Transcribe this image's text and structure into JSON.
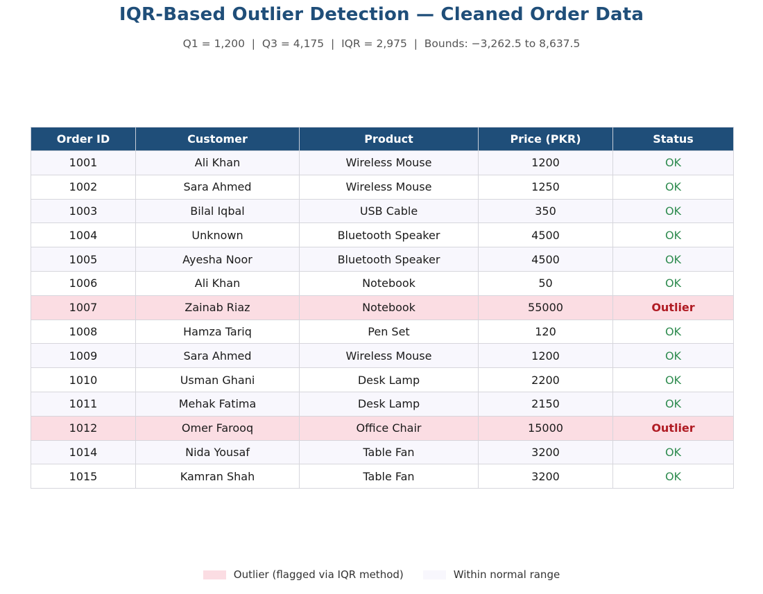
{
  "chart_data": {
    "type": "table",
    "title": "IQR-Based Outlier Detection — Cleaned Order Data",
    "subtitle": "Q1 = 1,200  |  Q3 = 4,175  |  IQR = 2,975  |  Bounds: −3,262.5 to 8,637.5",
    "columns": [
      "Order ID",
      "Customer",
      "Product",
      "Price (PKR)",
      "Status"
    ],
    "rows": [
      {
        "order_id": "1001",
        "customer": "Ali Khan",
        "product": "Wireless Mouse",
        "price": "1200",
        "status": "OK"
      },
      {
        "order_id": "1002",
        "customer": "Sara Ahmed",
        "product": "Wireless Mouse",
        "price": "1250",
        "status": "OK"
      },
      {
        "order_id": "1003",
        "customer": "Bilal Iqbal",
        "product": "USB Cable",
        "price": "350",
        "status": "OK"
      },
      {
        "order_id": "1004",
        "customer": "Unknown",
        "product": "Bluetooth Speaker",
        "price": "4500",
        "status": "OK"
      },
      {
        "order_id": "1005",
        "customer": "Ayesha Noor",
        "product": "Bluetooth Speaker",
        "price": "4500",
        "status": "OK"
      },
      {
        "order_id": "1006",
        "customer": "Ali Khan",
        "product": "Notebook",
        "price": "50",
        "status": "OK"
      },
      {
        "order_id": "1007",
        "customer": "Zainab Riaz",
        "product": "Notebook",
        "price": "55000",
        "status": "Outlier"
      },
      {
        "order_id": "1008",
        "customer": "Hamza Tariq",
        "product": "Pen Set",
        "price": "120",
        "status": "OK"
      },
      {
        "order_id": "1009",
        "customer": "Sara Ahmed",
        "product": "Wireless Mouse",
        "price": "1200",
        "status": "OK"
      },
      {
        "order_id": "1010",
        "customer": "Usman Ghani",
        "product": "Desk Lamp",
        "price": "2200",
        "status": "OK"
      },
      {
        "order_id": "1011",
        "customer": "Mehak Fatima",
        "product": "Desk Lamp",
        "price": "2150",
        "status": "OK"
      },
      {
        "order_id": "1012",
        "customer": "Omer Farooq",
        "product": "Office Chair",
        "price": "15000",
        "status": "Outlier"
      },
      {
        "order_id": "1014",
        "customer": "Nida Yousaf",
        "product": "Table Fan",
        "price": "3200",
        "status": "OK"
      },
      {
        "order_id": "1015",
        "customer": "Kamran Shah",
        "product": "Table Fan",
        "price": "3200",
        "status": "OK"
      }
    ],
    "legend": [
      {
        "label": "Outlier (flagged via IQR method)",
        "color": "#fbdde3"
      },
      {
        "label": "Within normal range",
        "color": "#f8f7fd"
      }
    ],
    "colors": {
      "header_bg": "#1f4e79",
      "title": "#1f4e79",
      "ok_text": "#2e8b4f",
      "outlier_text": "#b01c24",
      "outlier_row": "#fbdde3",
      "even_row": "#f8f7fd",
      "odd_row": "#ffffff"
    }
  }
}
